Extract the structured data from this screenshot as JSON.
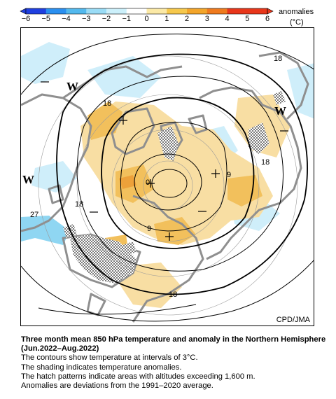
{
  "colorbar": {
    "label": "anomalies",
    "unit": "(°C)",
    "ticks": [
      "−6",
      "−5",
      "−4",
      "−3",
      "−2",
      "−1",
      "0",
      "1",
      "2",
      "3",
      "4",
      "5",
      "6"
    ],
    "colors": [
      "#1f3fe0",
      "#2a8ff0",
      "#53b9ee",
      "#9adcf6",
      "#ccf0fb",
      "#ffffff",
      "#fbe9a6",
      "#f6c84c",
      "#f3a52a",
      "#ef7a1e",
      "#e8361a"
    ]
  },
  "map": {
    "pressure_labels": [
      "W",
      "W",
      "W"
    ],
    "contour_labels": [
      "18",
      "18",
      "18",
      "18",
      "9",
      "9",
      "0",
      "27",
      "18"
    ],
    "credit": "CPD/JMA",
    "colors": {
      "land": "#8f8f8f",
      "hatch": "#7a7a7a",
      "warm_light": "#f8dea3",
      "warm": "#f2c05c",
      "warm_strong": "#eda13a",
      "cold_light": "#cfeefa",
      "cold": "#8fd6f2"
    }
  },
  "caption": {
    "title": "Three month mean 850 hPa temperature and anomaly in the Northern Hemisphere (Jun.2022–Aug.2022)",
    "lines": [
      "The contours show temperature at intervals of 3°C.",
      "The shading indicates temperature anomalies.",
      "The hatch patterns indicate areas with altitudes exceeding 1,600 m.",
      "Anomalies are deviations from the 1991–2020 average."
    ]
  }
}
